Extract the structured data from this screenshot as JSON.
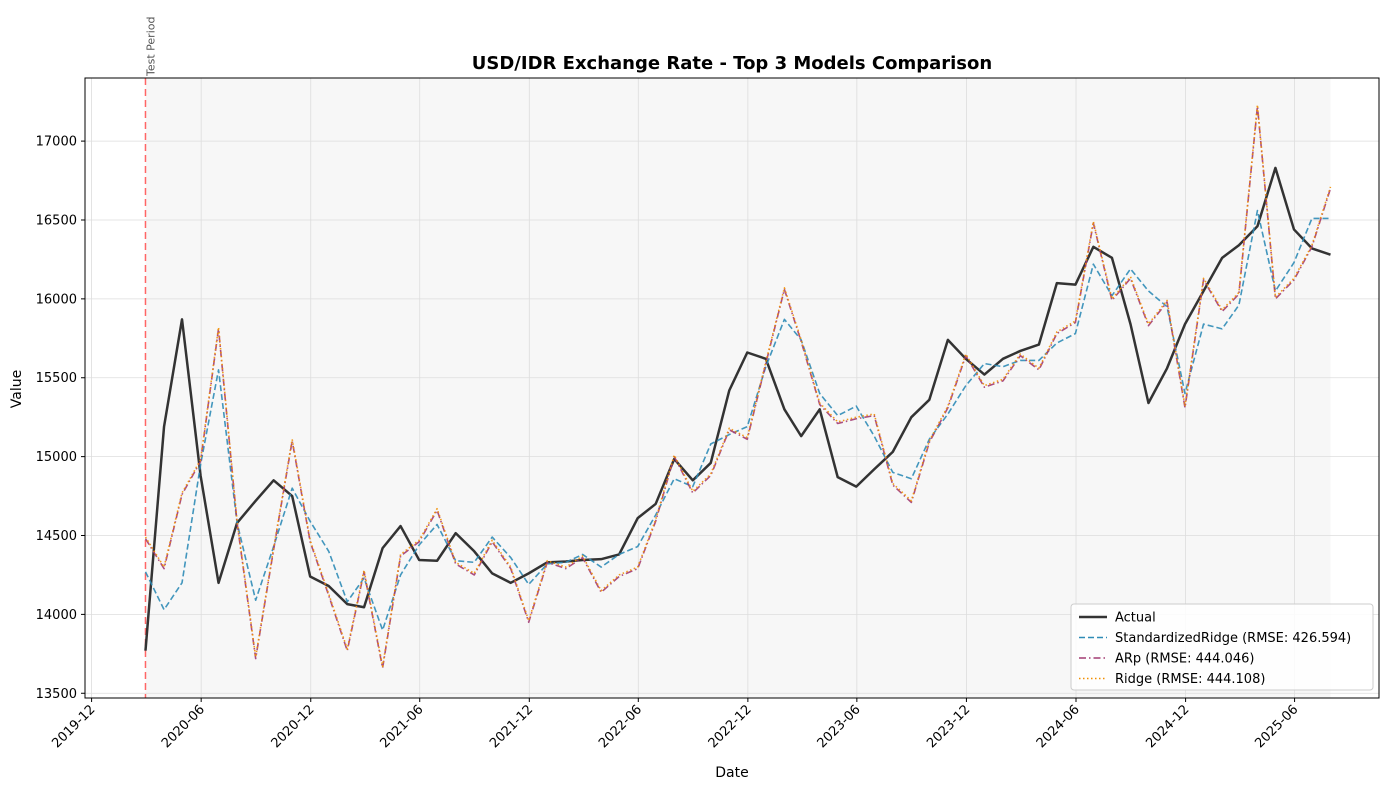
{
  "chart_data": {
    "type": "line",
    "title": "USD/IDR Exchange Rate - Top 3 Models Comparison",
    "xlabel": "Date",
    "ylabel": "Value",
    "xlim": [
      "2019-11-20",
      "2025-10-20"
    ],
    "ylim": [
      13470,
      17400
    ],
    "y_ticks": [
      13500,
      14000,
      14500,
      15000,
      15500,
      16000,
      16500,
      17000
    ],
    "x_ticks": [
      {
        "date": "2019-12-01",
        "label": "2019-12"
      },
      {
        "date": "2020-06-01",
        "label": "2020-06"
      },
      {
        "date": "2020-12-01",
        "label": "2020-12"
      },
      {
        "date": "2021-06-01",
        "label": "2021-06"
      },
      {
        "date": "2021-12-01",
        "label": "2021-12"
      },
      {
        "date": "2022-06-01",
        "label": "2022-06"
      },
      {
        "date": "2022-12-01",
        "label": "2022-12"
      },
      {
        "date": "2023-06-01",
        "label": "2023-06"
      },
      {
        "date": "2023-12-01",
        "label": "2023-12"
      },
      {
        "date": "2024-06-01",
        "label": "2024-06"
      },
      {
        "date": "2024-12-01",
        "label": "2024-12"
      },
      {
        "date": "2025-06-01",
        "label": "2025-06"
      }
    ],
    "grid": true,
    "legend_position": "lower-right",
    "test_period": {
      "start": "2020-02-29",
      "end": "2025-07-31",
      "label": "Test Period",
      "color": "#ff6666",
      "shade": "#f7f7f7"
    },
    "x_dates": [
      "2020-02-29",
      "2020-03-31",
      "2020-04-30",
      "2020-05-31",
      "2020-06-30",
      "2020-07-31",
      "2020-08-31",
      "2020-09-30",
      "2020-10-31",
      "2020-11-30",
      "2020-12-31",
      "2021-01-31",
      "2021-02-28",
      "2021-03-31",
      "2021-04-30",
      "2021-05-31",
      "2021-06-30",
      "2021-07-31",
      "2021-08-31",
      "2021-09-30",
      "2021-10-31",
      "2021-11-30",
      "2021-12-31",
      "2022-01-31",
      "2022-02-28",
      "2022-03-31",
      "2022-04-30",
      "2022-05-31",
      "2022-06-30",
      "2022-07-31",
      "2022-08-31",
      "2022-09-30",
      "2022-10-31",
      "2022-11-30",
      "2022-12-31",
      "2023-01-31",
      "2023-02-28",
      "2023-03-31",
      "2023-04-30",
      "2023-05-31",
      "2023-06-30",
      "2023-07-31",
      "2023-08-31",
      "2023-09-30",
      "2023-10-31",
      "2023-11-30",
      "2023-12-31",
      "2024-01-31",
      "2024-02-29",
      "2024-03-31",
      "2024-04-30",
      "2024-05-31",
      "2024-06-30",
      "2024-07-31",
      "2024-08-31",
      "2024-09-30",
      "2024-10-31",
      "2024-11-30",
      "2024-12-31",
      "2025-01-31",
      "2025-02-28",
      "2025-03-31",
      "2025-04-30",
      "2025-05-31",
      "2025-06-30",
      "2025-07-31"
    ],
    "series": [
      {
        "name": "Actual",
        "color": "#333333",
        "style": "solid",
        "width": 2.5,
        "values": [
          13770,
          15190,
          15870,
          14880,
          14200,
          14580,
          14720,
          14850,
          14750,
          14240,
          14180,
          14065,
          14045,
          14420,
          14560,
          14345,
          14340,
          14515,
          14400,
          14260,
          14200,
          14260,
          14330,
          14335,
          14345,
          14350,
          14380,
          14610,
          14700,
          14985,
          14850,
          14960,
          15420,
          15660,
          15620,
          15300,
          15130,
          15300,
          14870,
          14810,
          14920,
          15030,
          15250,
          15360,
          15740,
          15620,
          15520,
          15620,
          15670,
          15710,
          16100,
          16090,
          16330,
          16260,
          15840,
          15340,
          15560,
          15840,
          16050,
          16260,
          16340,
          16460,
          16830,
          16440,
          16320,
          16280
        ]
      },
      {
        "name": "StandardizedRidge (RMSE: 426.594)",
        "color": "#2e8bb6",
        "style": "dashed",
        "width": 1.6,
        "values": [
          14270,
          14030,
          14200,
          14950,
          15550,
          14580,
          14090,
          14430,
          14800,
          14590,
          14400,
          14080,
          14230,
          13900,
          14250,
          14440,
          14570,
          14340,
          14330,
          14490,
          14360,
          14190,
          14320,
          14330,
          14380,
          14300,
          14380,
          14430,
          14630,
          14860,
          14810,
          15080,
          15140,
          15190,
          15570,
          15870,
          15740,
          15400,
          15260,
          15320,
          15130,
          14900,
          14860,
          15110,
          15270,
          15450,
          15590,
          15570,
          15610,
          15610,
          15720,
          15780,
          16220,
          16020,
          16190,
          16050,
          15950,
          15400,
          15840,
          15810,
          15960,
          16560,
          16050,
          16230,
          16510,
          16510
        ]
      },
      {
        "name": "ARp (RMSE: 444.046)",
        "color": "#a23b72",
        "style": "dashdot",
        "width": 1.6,
        "values": [
          14480,
          14290,
          14760,
          14970,
          15810,
          14580,
          13720,
          14410,
          15100,
          14460,
          14120,
          13770,
          14270,
          13660,
          14370,
          14460,
          14660,
          14320,
          14250,
          14460,
          14290,
          13950,
          14330,
          14290,
          14360,
          14140,
          14240,
          14290,
          14590,
          15000,
          14770,
          14880,
          15170,
          15110,
          15590,
          16060,
          15730,
          15330,
          15210,
          15240,
          15260,
          14820,
          14710,
          15090,
          15310,
          15640,
          15440,
          15480,
          15640,
          15550,
          15780,
          15850,
          16480,
          15990,
          16130,
          15830,
          15980,
          15310,
          16120,
          15920,
          16030,
          17220,
          16000,
          16120,
          16330,
          16700
        ]
      },
      {
        "name": "Ridge (RMSE: 444.108)",
        "color": "#f18f01",
        "style": "dotted",
        "width": 1.6,
        "values": [
          14490,
          14300,
          14770,
          14980,
          15820,
          14590,
          13730,
          14420,
          15110,
          14470,
          14130,
          13780,
          14280,
          13670,
          14380,
          14470,
          14670,
          14330,
          14260,
          14470,
          14300,
          13960,
          14340,
          14300,
          14370,
          14150,
          14250,
          14300,
          14600,
          15010,
          14780,
          14890,
          15180,
          15120,
          15600,
          16070,
          15740,
          15340,
          15220,
          15250,
          15270,
          14830,
          14720,
          15100,
          15320,
          15650,
          15450,
          15490,
          15650,
          15560,
          15790,
          15860,
          16490,
          16000,
          16140,
          15840,
          15990,
          15320,
          16130,
          15930,
          16040,
          17230,
          16010,
          16130,
          16340,
          16710
        ]
      }
    ]
  }
}
